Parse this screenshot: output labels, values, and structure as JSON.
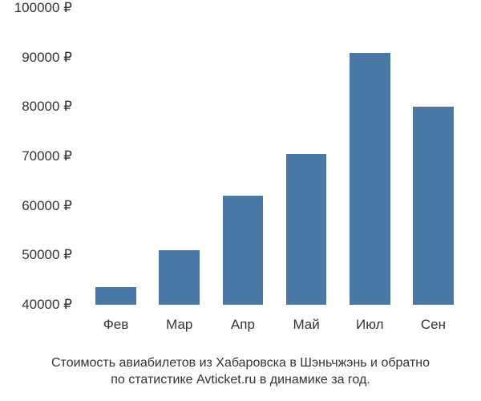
{
  "chart": {
    "type": "bar",
    "bar_color": "#4a78a6",
    "background_color": "#ffffff",
    "text_color": "#333333",
    "font_family": "Arial, sans-serif",
    "tick_fontsize": 17,
    "caption_fontsize": 16,
    "ylim": [
      40000,
      100000
    ],
    "ytick_step": 10000,
    "ytick_suffix": " ₽",
    "yticks": [
      {
        "value": 40000,
        "label": "40000 ₽"
      },
      {
        "value": 50000,
        "label": "50000 ₽"
      },
      {
        "value": 60000,
        "label": "60000 ₽"
      },
      {
        "value": 70000,
        "label": "70000 ₽"
      },
      {
        "value": 80000,
        "label": "80000 ₽"
      },
      {
        "value": 90000,
        "label": "90000 ₽"
      },
      {
        "value": 100000,
        "label": "100000 ₽"
      }
    ],
    "categories": [
      "Фев",
      "Мар",
      "Апр",
      "Май",
      "Июл",
      "Сен"
    ],
    "values": [
      43500,
      51000,
      62000,
      70500,
      91000,
      80000
    ],
    "bar_width_ratio": 0.64,
    "caption_line1": "Стоимость авиабилетов из Хабаровска в Шэньчжэнь и обратно",
    "caption_line2": "по статистике Avticket.ru в динамике за год."
  }
}
